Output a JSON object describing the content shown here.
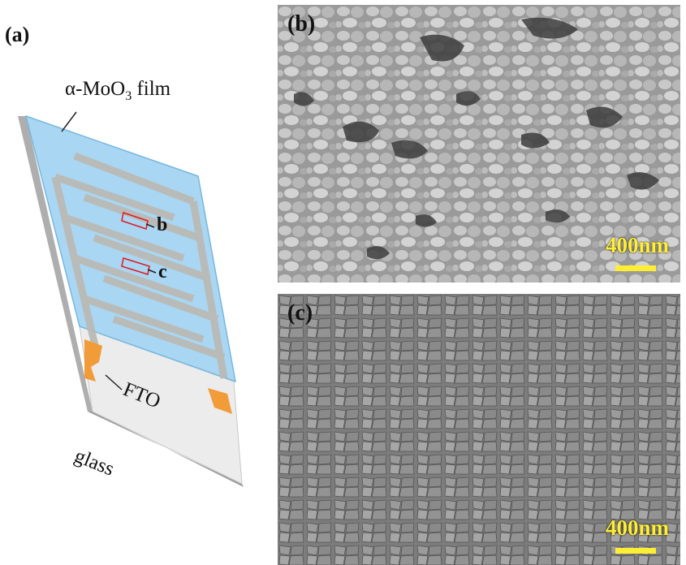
{
  "figure": {
    "panel_a": {
      "label": "(a)",
      "film_label_prefix": "α-MoO",
      "film_label_sub": "3",
      "film_label_suffix": " film",
      "electrode_label": "FTO",
      "substrate_label": "glass",
      "marker_b": "b",
      "marker_c": "c",
      "colors": {
        "film": "#a9d6f2",
        "electrode": "#f29b39",
        "fingers": "#b9bab4",
        "glass": "#eaeaea"
      }
    },
    "panel_b": {
      "label": "(b)",
      "scale": "400nm"
    },
    "panel_c": {
      "label": "(c)",
      "scale": "400nm"
    }
  }
}
